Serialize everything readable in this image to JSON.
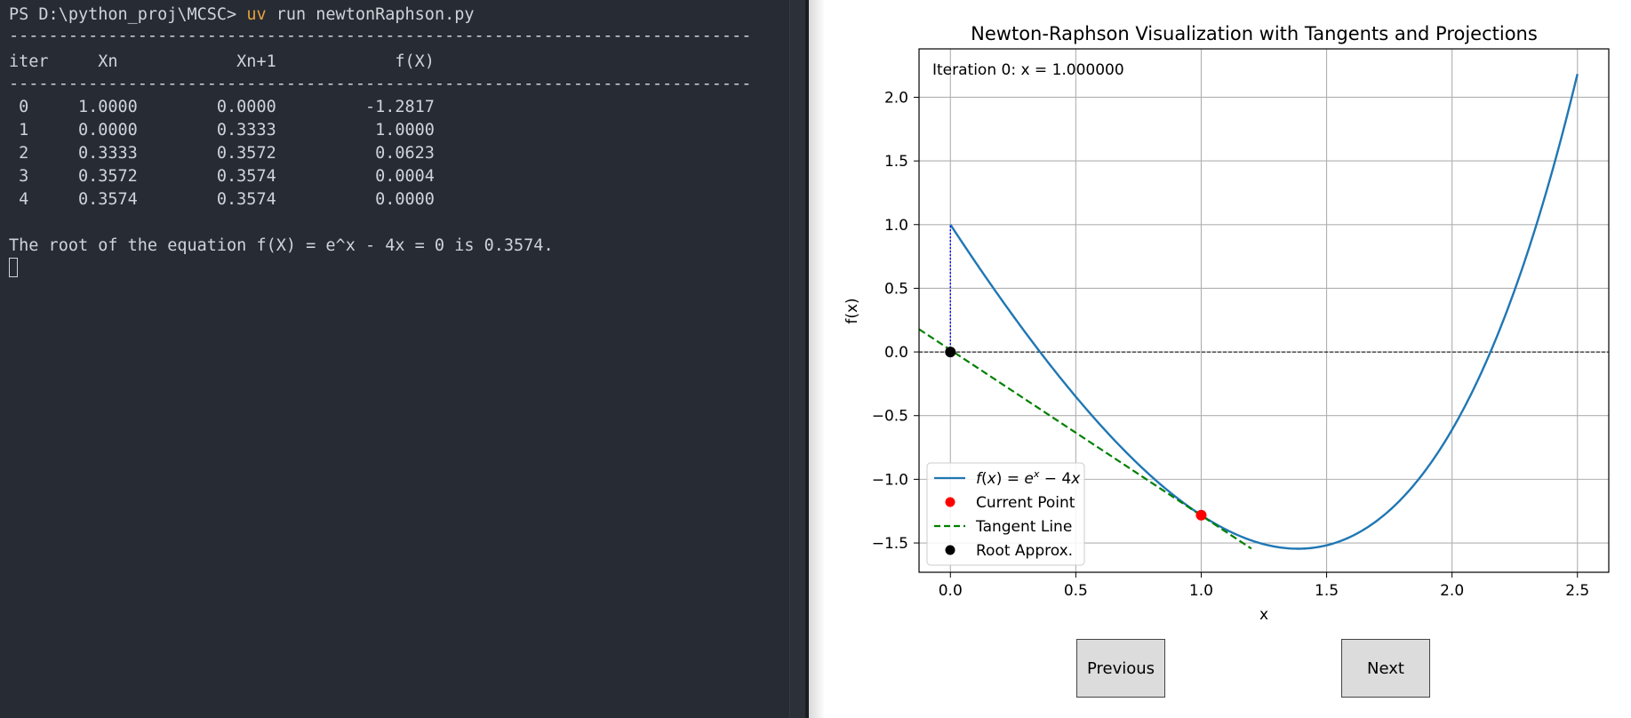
{
  "terminal": {
    "prompt": "PS D:\\python_proj\\MCSC> ",
    "command_tool": "uv",
    "command_rest": " run newtonRaphson.py",
    "separator": "---------------------------------------------------------------------------",
    "header": "iter     Xn            Xn+1            f(X)",
    "rows": [
      " 0     1.0000        0.0000         -1.2817",
      " 1     0.0000        0.3333          1.0000",
      " 2     0.3333        0.3572          0.0623",
      " 3     0.3572        0.3574          0.0004",
      " 4     0.3574        0.3574          0.0000"
    ],
    "result": "The root of the equation f(X) = e^x - 4x = 0 is 0.3574."
  },
  "plot": {
    "buttons": {
      "previous": "Previous",
      "next": "Next"
    }
  },
  "chart_data": {
    "type": "line",
    "title": "Newton-Raphson Visualization with Tangents and Projections",
    "xlabel": "x",
    "ylabel": "f(x)",
    "annotation": "Iteration 0: x = 1.000000",
    "xlim": [
      -0.125,
      2.625
    ],
    "ylim": [
      -1.73,
      2.38
    ],
    "xticks": [
      0.0,
      0.5,
      1.0,
      1.5,
      2.0,
      2.5
    ],
    "xtick_labels": [
      "0.0",
      "0.5",
      "1.0",
      "1.5",
      "2.0",
      "2.5"
    ],
    "yticks": [
      -1.5,
      -1.0,
      -0.5,
      0.0,
      0.5,
      1.0,
      1.5,
      2.0
    ],
    "ytick_labels": [
      "−1.5",
      "−1.0",
      "−0.5",
      "0.0",
      "0.5",
      "1.0",
      "1.5",
      "2.0"
    ],
    "grid": true,
    "legend_position": "lower-left",
    "series": [
      {
        "name": "f(x) = e^x − 4x",
        "kind": "curve",
        "function": "exp(x) - 4x",
        "x_range": [
          0,
          2.5
        ],
        "color": "#1f77b4"
      },
      {
        "name": "Current Point",
        "kind": "point",
        "x": 1.0,
        "y": -1.2817,
        "color": "#ff0000"
      },
      {
        "name": "Tangent Line",
        "kind": "dashed-line",
        "x": [
          -0.125,
          1.2
        ],
        "y": [
          0.1786,
          -1.5443
        ],
        "color": "#008000"
      },
      {
        "name": "Root Approx.",
        "kind": "point",
        "x": 0.0,
        "y": 0.0,
        "color": "#000000"
      }
    ],
    "zero_line": {
      "y": 0,
      "style": "dashed",
      "color": "#000000"
    },
    "projection": {
      "x": 0.0,
      "y_from": 0.0,
      "y_to": 1.0,
      "style": "dotted",
      "color": "#0000ff"
    }
  }
}
